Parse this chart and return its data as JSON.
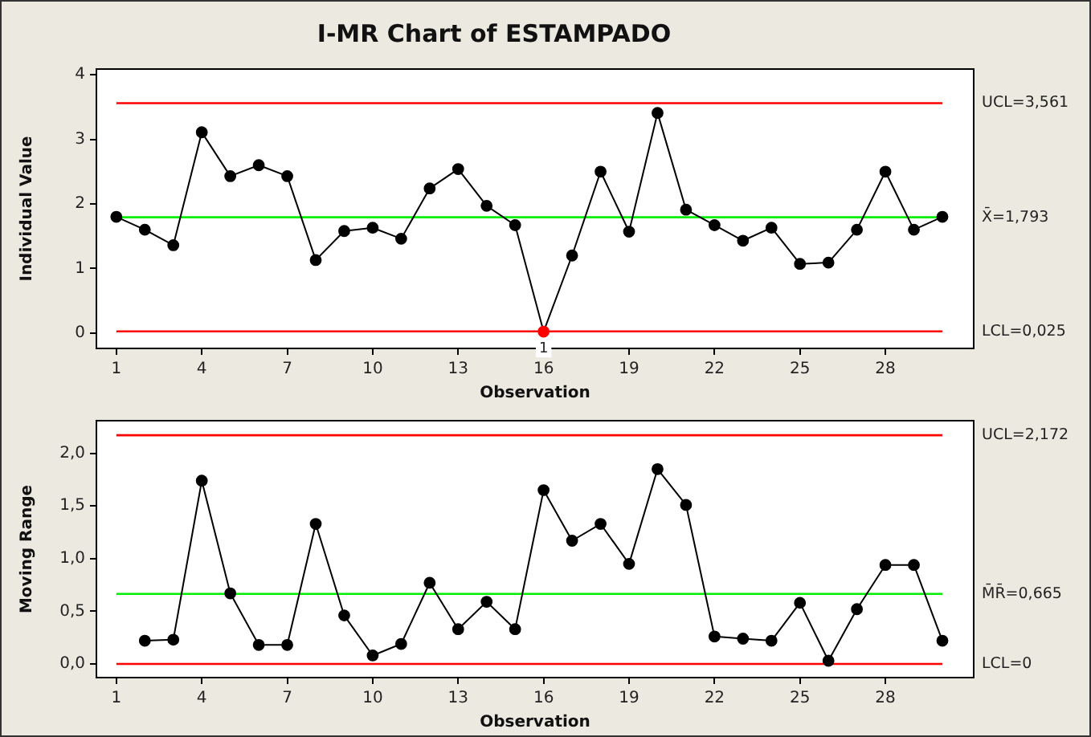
{
  "chart_data": [
    {
      "type": "line",
      "title": "I-MR Chart of ESTAMPADO",
      "xlabel": "Observation",
      "ylabel": "Individual Value",
      "marker": "circle",
      "grid": false,
      "legend": false,
      "x": [
        1,
        2,
        3,
        4,
        5,
        6,
        7,
        8,
        9,
        10,
        11,
        12,
        13,
        14,
        15,
        16,
        17,
        18,
        19,
        20,
        21,
        22,
        23,
        24,
        25,
        26,
        27,
        28,
        29,
        30
      ],
      "series": [
        {
          "color": "#000000",
          "colors": [
            "#000000",
            "#000000",
            "#000000",
            "#000000",
            "#000000",
            "#000000",
            "#000000",
            "#000000",
            "#000000",
            "#000000",
            "#000000",
            "#000000",
            "#000000",
            "#000000",
            "#000000",
            "#ff0000",
            "#000000",
            "#000000",
            "#000000",
            "#000000",
            "#000000",
            "#000000",
            "#000000",
            "#000000",
            "#000000",
            "#000000",
            "#000000",
            "#000000",
            "#000000",
            "#000000"
          ],
          "values": [
            1.8,
            1.6,
            1.36,
            3.11,
            2.43,
            2.6,
            2.43,
            1.13,
            1.58,
            1.63,
            1.46,
            2.24,
            2.54,
            1.97,
            1.67,
            0.02,
            1.2,
            2.5,
            1.57,
            3.41,
            1.91,
            1.67,
            1.43,
            1.63,
            1.07,
            1.09,
            1.6,
            2.5,
            1.6,
            1.8
          ]
        }
      ],
      "xlim": [
        0.3,
        31.1
      ],
      "xticks": [
        1,
        4,
        7,
        10,
        13,
        16,
        19,
        22,
        25,
        28
      ],
      "ylim": [
        -0.24,
        4.09
      ],
      "yticks": [
        0,
        1,
        2,
        3,
        4
      ],
      "ref_lines": [
        {
          "axis": "y",
          "value": 3.561,
          "label": "UCL=3,561",
          "color": "#ff0000"
        },
        {
          "axis": "y",
          "value": 1.793,
          "label": "X̄=1,793",
          "color": "#00ee00"
        },
        {
          "axis": "y",
          "value": 0.025,
          "label": "LCL=0,025",
          "color": "#ff0000"
        }
      ],
      "annotations": [
        {
          "text": "1",
          "x": 16,
          "y": 0.02
        }
      ]
    },
    {
      "type": "line",
      "xlabel": "Observation",
      "ylabel": "Moving Range",
      "marker": "circle",
      "grid": false,
      "legend": false,
      "x": [
        2,
        3,
        4,
        5,
        6,
        7,
        8,
        9,
        10,
        11,
        12,
        13,
        14,
        15,
        16,
        17,
        18,
        19,
        20,
        21,
        22,
        23,
        24,
        25,
        26,
        27,
        28,
        29,
        30
      ],
      "series": [
        {
          "color": "#000000",
          "values": [
            0.22,
            0.23,
            1.74,
            0.67,
            0.18,
            0.18,
            1.33,
            0.46,
            0.08,
            0.19,
            0.77,
            0.33,
            0.59,
            0.33,
            1.65,
            1.17,
            1.33,
            0.95,
            1.85,
            1.51,
            0.26,
            0.24,
            0.22,
            0.58,
            0.03,
            0.52,
            0.94,
            0.94,
            0.22
          ]
        }
      ],
      "xlim": [
        0.3,
        31.1
      ],
      "xticks": [
        1,
        4,
        7,
        10,
        13,
        16,
        19,
        22,
        25,
        28
      ],
      "ylim": [
        -0.13,
        2.31
      ],
      "yticks": [
        {
          "value": 0,
          "label": "0,0"
        },
        {
          "value": 0.5,
          "label": "0,5"
        },
        {
          "value": 1,
          "label": "1,0"
        },
        {
          "value": 1.5,
          "label": "1,5"
        },
        {
          "value": 2,
          "label": "2,0"
        }
      ],
      "ref_lines": [
        {
          "axis": "y",
          "value": 2.172,
          "label": "UCL=2,172",
          "color": "#ff0000"
        },
        {
          "axis": "y",
          "value": 0.665,
          "label": "M̄R̄=0,665",
          "color": "#00ee00"
        },
        {
          "axis": "y",
          "value": 0,
          "label": "LCL=0",
          "color": "#ff0000"
        }
      ]
    }
  ]
}
